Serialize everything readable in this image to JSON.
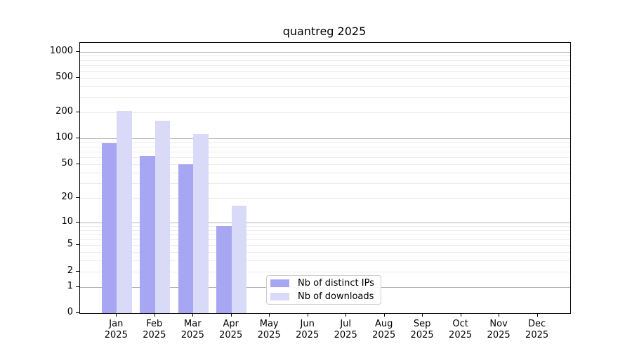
{
  "chart_data": {
    "type": "bar",
    "title": "quantreg 2025",
    "x_categories": [
      "Jan",
      "Feb",
      "Mar",
      "Apr",
      "May",
      "Jun",
      "Jul",
      "Aug",
      "Sep",
      "Oct",
      "Nov",
      "Dec"
    ],
    "x_year_suffix": "2025",
    "series": [
      {
        "name": "Nb of distinct IPs",
        "color": "#a6a6f2",
        "values": [
          88,
          63,
          50,
          9,
          null,
          null,
          null,
          null,
          null,
          null,
          null,
          null
        ]
      },
      {
        "name": "Nb of downloads",
        "color": "#d9d9f8",
        "values": [
          210,
          160,
          112,
          16,
          null,
          null,
          null,
          null,
          null,
          null,
          null,
          null
        ]
      }
    ],
    "y_scale": "log10(1+y)",
    "y_ticks": [
      0,
      1,
      2,
      5,
      10,
      20,
      50,
      100,
      200,
      500,
      1000
    ],
    "ylim": [
      0,
      1265
    ],
    "grid": {
      "on": true,
      "major_ticks": [
        1,
        10,
        100,
        1000
      ],
      "major_color": "#b3b3b3",
      "minor_color": "#ebebeb"
    },
    "legend_position": "bottom-center"
  }
}
